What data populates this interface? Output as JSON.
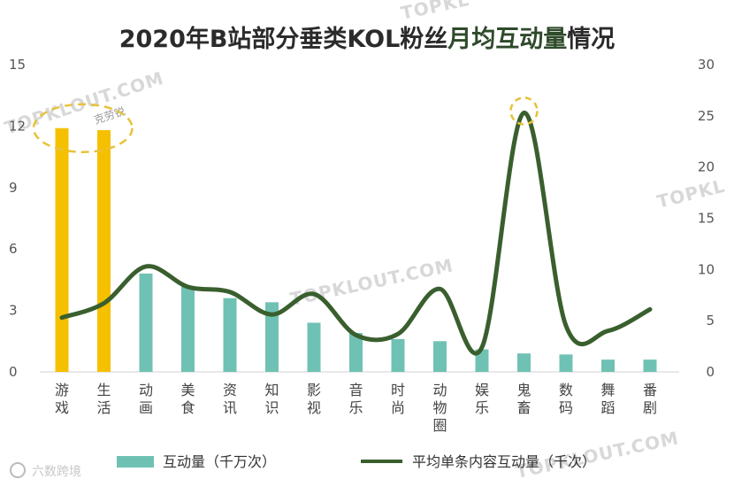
{
  "chart_data": {
    "type": "bar",
    "title_main": "2020年B站部分垂类KOL粉丝",
    "title_highlight": "月均互动量",
    "title_tail": "情况",
    "categories": [
      "游戏",
      "生活",
      "动画",
      "美食",
      "资讯",
      "知识",
      "影视",
      "音乐",
      "时尚",
      "动物圈",
      "娱乐",
      "鬼畜",
      "数码",
      "舞蹈",
      "番剧"
    ],
    "series": [
      {
        "name": "互动量（千万次）",
        "type": "bar",
        "axis": "left",
        "values": [
          11.9,
          11.8,
          4.8,
          4.2,
          3.6,
          3.4,
          2.4,
          1.9,
          1.6,
          1.5,
          1.1,
          0.9,
          0.85,
          0.6,
          0.6
        ],
        "highlight_color": "#f5c000",
        "color": "#6fc2b3"
      },
      {
        "name": "平均单条内容互动量（千次）",
        "type": "line",
        "axis": "right",
        "values": [
          5.3,
          6.7,
          10.3,
          8.3,
          7.8,
          5.6,
          7.6,
          3.6,
          3.7,
          8.1,
          2.4,
          25.3,
          4.5,
          4.0,
          6.1
        ],
        "color": "#3a5f2e"
      }
    ],
    "y_left": {
      "range": [
        0,
        15
      ],
      "ticks": [
        "0",
        "3",
        "6",
        "9",
        "12",
        "15"
      ]
    },
    "y_right": {
      "range": [
        0,
        30
      ],
      "ticks": [
        "0",
        "5",
        "10",
        "15",
        "20",
        "25",
        "30"
      ]
    },
    "highlighted_bars": [
      0,
      1
    ],
    "highlighted_points": [
      11
    ],
    "legend": [
      {
        "label": "互动量（千万次）",
        "kind": "bar"
      },
      {
        "label": "平均单条内容互动量（千次）",
        "kind": "line"
      }
    ],
    "legend_position": "bottom"
  },
  "watermarks": {
    "brand": "TOPKLOUT.COM",
    "brand_short": "TOPKL",
    "sub": "克劳锐",
    "footer": "六数跨境"
  }
}
